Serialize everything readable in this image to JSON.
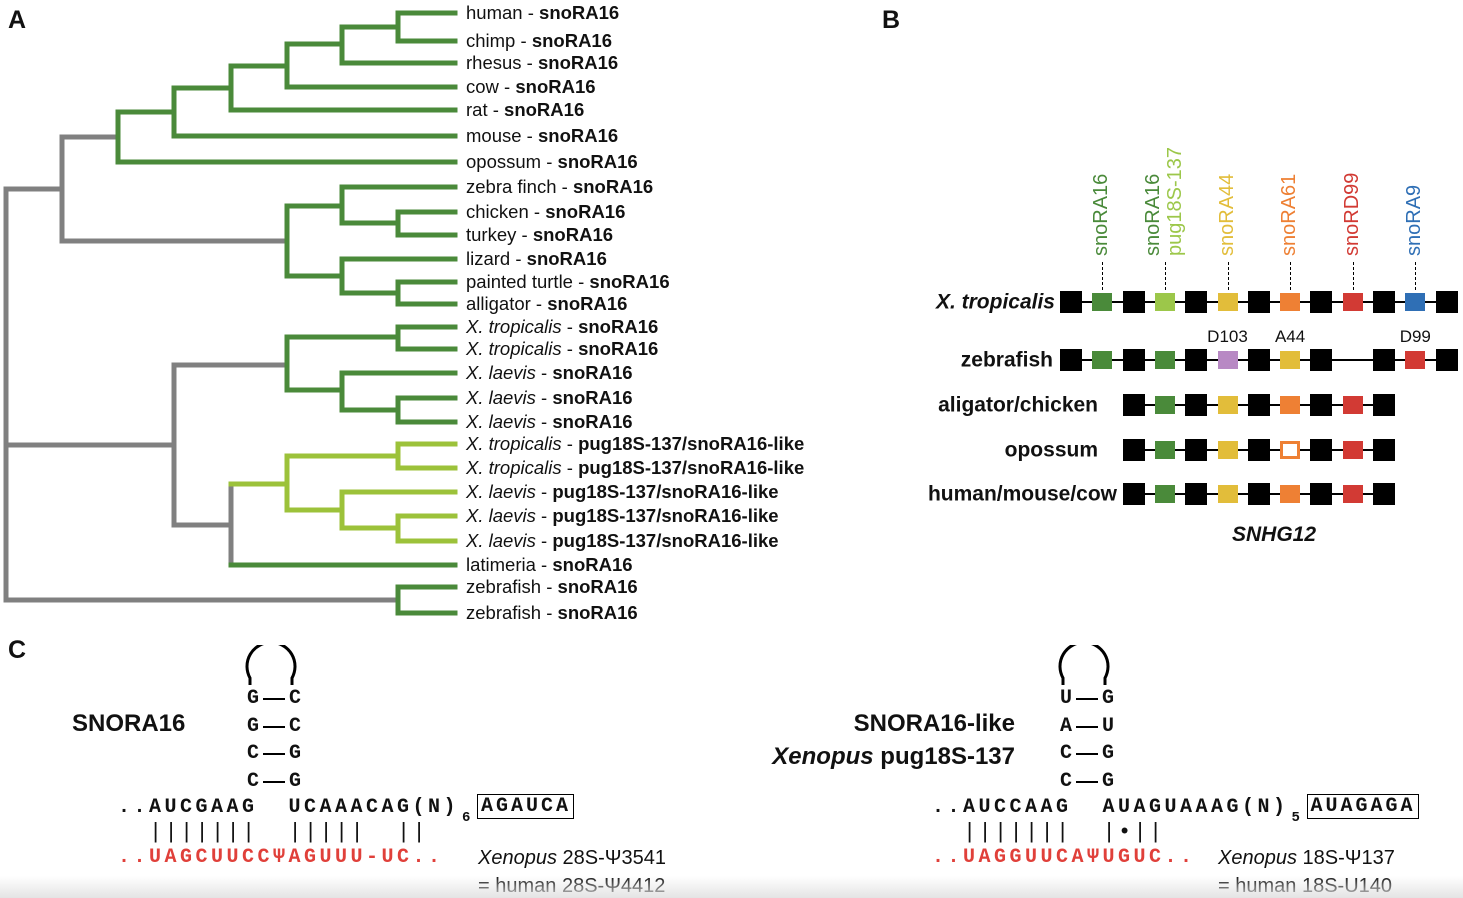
{
  "panels": {
    "a": "A",
    "b": "B",
    "c": "C"
  },
  "colors": {
    "tree_green": "#4a8a3a",
    "tree_lightgreen": "#9cc23a",
    "tree_gray": "#808080",
    "exon": "#000000",
    "snoRA16": "#4a8a3a",
    "pug18S-137": "#9cc74a",
    "snoRA44": "#e2bd3a",
    "snoRA61": "#ee8034",
    "snoRD99": "#d23a34",
    "snoRA9": "#2f6fb5",
    "D103": "#b889c4",
    "rRNA_red": "#e0403a"
  },
  "tree": {
    "leaves": [
      {
        "species": "human",
        "italic": false,
        "gene": "snoRA16"
      },
      {
        "species": "chimp",
        "italic": false,
        "gene": "snoRA16"
      },
      {
        "species": "rhesus",
        "italic": false,
        "gene": "snoRA16"
      },
      {
        "species": "cow",
        "italic": false,
        "gene": "snoRA16"
      },
      {
        "species": "rat",
        "italic": false,
        "gene": "snoRA16"
      },
      {
        "species": "mouse",
        "italic": false,
        "gene": "snoRA16"
      },
      {
        "species": "opossum",
        "italic": false,
        "gene": "snoRA16"
      },
      {
        "species": "zebra finch",
        "italic": false,
        "gene": "snoRA16"
      },
      {
        "species": "chicken",
        "italic": false,
        "gene": "snoRA16"
      },
      {
        "species": "turkey",
        "italic": false,
        "gene": "snoRA16"
      },
      {
        "species": "lizard",
        "italic": false,
        "gene": "snoRA16"
      },
      {
        "species": "painted turtle",
        "italic": false,
        "gene": "snoRA16"
      },
      {
        "species": "alligator",
        "italic": false,
        "gene": "snoRA16"
      },
      {
        "species": "X. tropicalis",
        "italic": true,
        "gene": "snoRA16"
      },
      {
        "species": "X. tropicalis",
        "italic": true,
        "gene": "snoRA16"
      },
      {
        "species": "X. laevis",
        "italic": true,
        "gene": "snoRA16"
      },
      {
        "species": "X. laevis",
        "italic": true,
        "gene": "snoRA16"
      },
      {
        "species": "X. laevis",
        "italic": true,
        "gene": "snoRA16"
      },
      {
        "species": "X. tropicalis",
        "italic": true,
        "gene": "pug18S-137/snoRA16-like"
      },
      {
        "species": "X. tropicalis",
        "italic": true,
        "gene": "pug18S-137/snoRA16-like"
      },
      {
        "species": "X. laevis",
        "italic": true,
        "gene": "pug18S-137/snoRA16-like"
      },
      {
        "species": "X. laevis",
        "italic": true,
        "gene": "pug18S-137/snoRA16-like"
      },
      {
        "species": "X. laevis",
        "italic": true,
        "gene": "pug18S-137/snoRA16-like"
      },
      {
        "species": "latimeria",
        "italic": false,
        "gene": "snoRA16"
      },
      {
        "species": "zebrafish",
        "italic": false,
        "gene": "snoRA16"
      },
      {
        "species": "zebrafish",
        "italic": false,
        "gene": "snoRA16"
      }
    ],
    "separator": " - "
  },
  "genes": {
    "top_labels": [
      {
        "slot": 1,
        "lines": [
          {
            "text": "snoRA16",
            "color": "snoRA16"
          }
        ]
      },
      {
        "slot": 3,
        "lines": [
          {
            "text": "snoRA16",
            "color": "snoRA16"
          },
          {
            "text": "pug18S-137",
            "color": "pug18S-137"
          }
        ]
      },
      {
        "slot": 5,
        "lines": [
          {
            "text": "snoRA44",
            "color": "snoRA44"
          }
        ]
      },
      {
        "slot": 7,
        "lines": [
          {
            "text": "snoRA61",
            "color": "snoRA61"
          }
        ]
      },
      {
        "slot": 9,
        "lines": [
          {
            "text": "snoRD99",
            "color": "snoRD99"
          }
        ]
      },
      {
        "slot": 11,
        "lines": [
          {
            "text": "snoRA9",
            "color": "snoRA9"
          }
        ]
      }
    ],
    "rows": [
      {
        "label": "X. tropicalis",
        "italic": true,
        "slots": [
          "exon",
          "snoRA16",
          "exon",
          "pug18S-137",
          "exon",
          "snoRA44",
          "exon",
          "snoRA61",
          "exon",
          "snoRD99",
          "exon",
          "snoRA9",
          "exon"
        ]
      },
      {
        "label": "zebrafish",
        "italic": false,
        "slots": [
          "exon",
          "snoRA16",
          "exon",
          "snoRA16",
          "exon",
          "D103",
          "exon",
          "snoRA44",
          "exon",
          null,
          "exon",
          "snoRD99",
          "exon"
        ],
        "annotations": [
          {
            "slot": 5,
            "text": "D103"
          },
          {
            "slot": 7,
            "text": "A44"
          },
          {
            "slot": 11,
            "text": "D99"
          }
        ]
      },
      {
        "label": "aligator/chicken",
        "italic": false,
        "slots": [
          null,
          null,
          "exon",
          "snoRA16",
          "exon",
          "snoRA44",
          "exon",
          "snoRA61",
          "exon",
          "snoRD99",
          "exon",
          null,
          null
        ]
      },
      {
        "label": "opossum",
        "italic": false,
        "slots": [
          null,
          null,
          "exon",
          "snoRA16",
          "exon",
          "snoRA44",
          "exon",
          "snoRA61-hollow",
          "exon",
          "snoRD99",
          "exon",
          null,
          null
        ]
      },
      {
        "label": "human/mouse/cow",
        "italic": false,
        "slots": [
          null,
          null,
          "exon",
          "snoRA16",
          "exon",
          "snoRA44",
          "exon",
          "snoRA61",
          "exon",
          "snoRD99",
          "exon",
          null,
          null
        ]
      }
    ],
    "host_gene": "SNHG12"
  },
  "structures": [
    {
      "title_lines": [
        {
          "parts": [
            {
              "text": "SNORA16",
              "italic": false
            }
          ]
        }
      ],
      "stem": [
        [
          "G",
          "C"
        ],
        [
          "G",
          "C"
        ],
        [
          "C",
          "G"
        ],
        [
          "C",
          "G"
        ]
      ],
      "top_seq": "..AUCGAAG  UCAAACAG(N)",
      "n_count": "6",
      "box": "AGAUCA",
      "pairs": "  |||||||  |||||  ||",
      "target_seq": "..UAGCUUCCΨAGUUU-UC..",
      "note_lines": [
        [
          {
            "text": "Xenopus",
            "italic": true
          },
          {
            "text": " 28S-Ψ3541",
            "italic": false
          }
        ],
        [
          {
            "text": "= human 28S-Ψ4412",
            "italic": false
          }
        ]
      ]
    },
    {
      "title_lines": [
        {
          "parts": [
            {
              "text": "SNORA16-like",
              "italic": false
            }
          ]
        },
        {
          "parts": [
            {
              "text": "Xenopus",
              "italic": true
            },
            {
              "text": " pug18S-137",
              "italic": false
            }
          ]
        }
      ],
      "stem": [
        [
          "U",
          "G"
        ],
        [
          "A",
          "U"
        ],
        [
          "C",
          "G"
        ],
        [
          "C",
          "G"
        ]
      ],
      "top_seq": "..AUCCAAG  AUAGUAAAG(N)",
      "n_count": "5",
      "box": "AUAGAGA",
      "pairs": "  |||||||  |•||",
      "target_seq": "..UAGGUUCAΨUGUC..",
      "note_lines": [
        [
          {
            "text": "Xenopus",
            "italic": true
          },
          {
            "text": " 18S-Ψ137",
            "italic": false
          }
        ],
        [
          {
            "text": "= human 18S-U140",
            "italic": false
          }
        ]
      ]
    }
  ]
}
